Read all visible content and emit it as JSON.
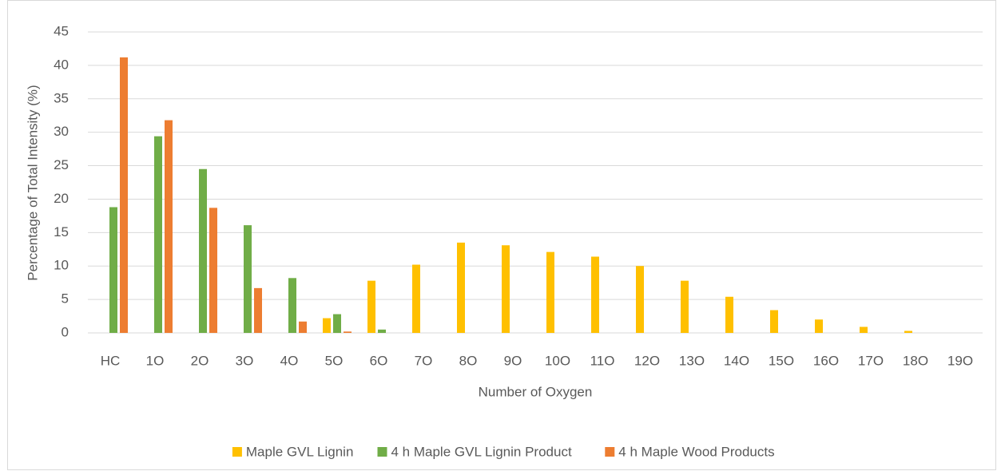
{
  "chart_data": {
    "type": "bar",
    "y_label": "Percentage of Total Intensity (%)",
    "x_label": "Number of Oxygen",
    "categories": [
      "HC",
      "1O",
      "2O",
      "3O",
      "4O",
      "5O",
      "6O",
      "7O",
      "8O",
      "9O",
      "10O",
      "11O",
      "12O",
      "13O",
      "14O",
      "15O",
      "16O",
      "17O",
      "18O",
      "19O"
    ],
    "series": [
      {
        "name": "Maple GVL Lignin",
        "color": "#ffc000",
        "values": [
          0,
          0,
          0,
          0,
          0,
          2.2,
          7.8,
          10.2,
          13.5,
          13.1,
          12.1,
          11.4,
          10,
          7.8,
          5.4,
          3.4,
          2.0,
          0.9,
          0.3,
          0
        ]
      },
      {
        "name": "4 h Maple GVL Lignin Product",
        "color": "#70ad47",
        "values": [
          18.8,
          29.4,
          24.5,
          16.1,
          8.2,
          2.8,
          0.5,
          0,
          0,
          0,
          0,
          0,
          0,
          0,
          0,
          0,
          0,
          0,
          0,
          0
        ]
      },
      {
        "name": "4 h Maple Wood Products",
        "color": "#ed7d31",
        "values": [
          41.2,
          31.8,
          18.7,
          6.7,
          1.7,
          0.2,
          0,
          0,
          0,
          0,
          0,
          0,
          0,
          0,
          0,
          0,
          0,
          0,
          0,
          0
        ]
      }
    ],
    "ylim": [
      0,
      45
    ],
    "yticks": [
      0,
      5,
      10,
      15,
      20,
      25,
      30,
      35,
      40,
      45
    ],
    "grid": true,
    "legend": "bottom"
  }
}
